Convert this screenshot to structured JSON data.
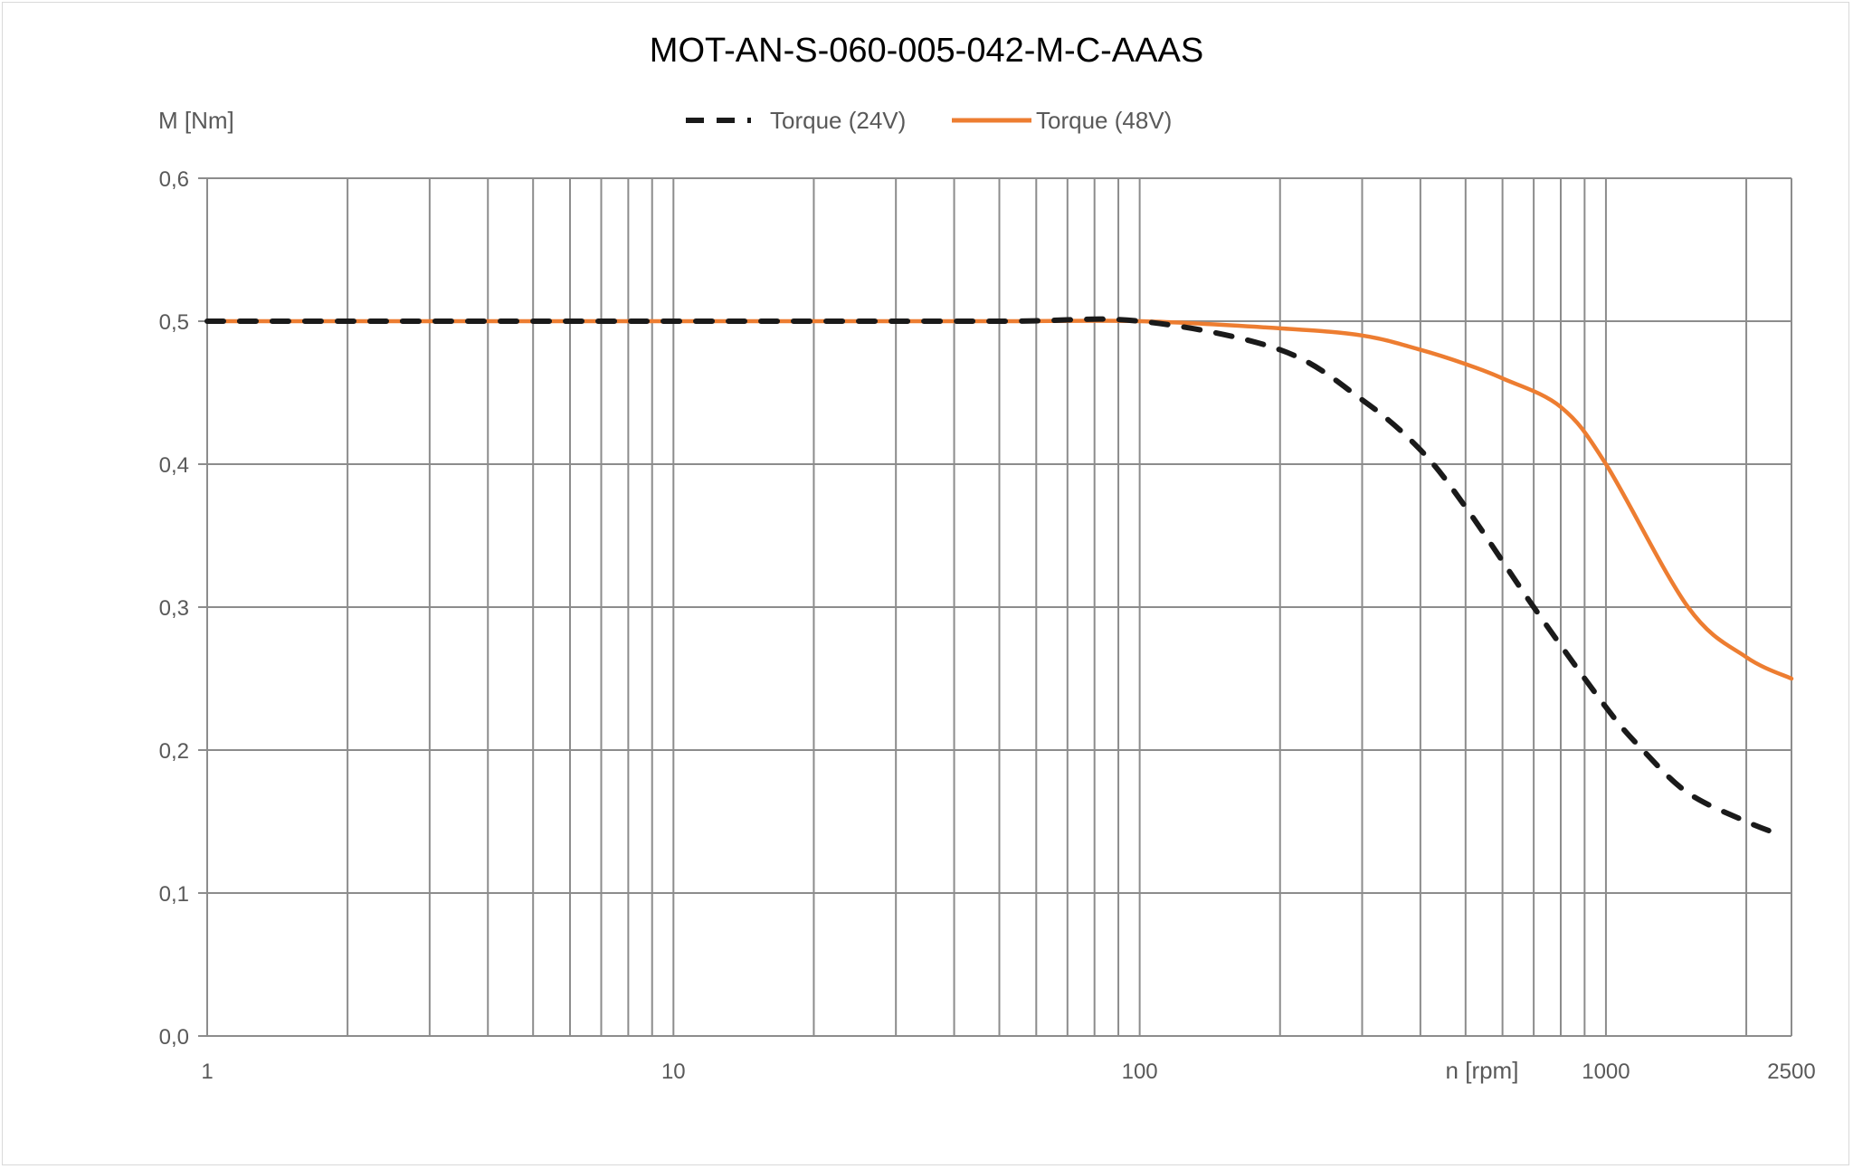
{
  "chart_data": {
    "type": "line",
    "title": "MOT-AN-S-060-005-042-M-C-AAAS",
    "xlabel": "n [rpm]",
    "ylabel": "M [Nm]",
    "x_scale": "log",
    "xlim": [
      1,
      2500
    ],
    "ylim": [
      0,
      0.6
    ],
    "x_tick_labels": [
      "1",
      "10",
      "100",
      "1000",
      "2500"
    ],
    "x_tick_values": [
      1,
      10,
      100,
      1000,
      2500
    ],
    "y_tick_labels": [
      "0,0",
      "0,1",
      "0,2",
      "0,3",
      "0,4",
      "0,5",
      "0,6"
    ],
    "y_tick_values": [
      0,
      0.1,
      0.2,
      0.3,
      0.4,
      0.5,
      0.6
    ],
    "grid": true,
    "legend_position": "top",
    "series": [
      {
        "name": "Torque (24V)",
        "color": "#1a1a1a",
        "style": "dashed",
        "x": [
          1,
          10,
          50,
          100,
          200,
          300,
          400,
          500,
          700,
          1000,
          1200,
          1500,
          2000,
          2400
        ],
        "y": [
          0.5,
          0.5,
          0.5,
          0.5,
          0.48,
          0.445,
          0.41,
          0.37,
          0.3,
          0.23,
          0.2,
          0.17,
          0.15,
          0.14
        ]
      },
      {
        "name": "Torque (48V)",
        "color": "#ed7d31",
        "style": "solid",
        "x": [
          1,
          10,
          50,
          100,
          200,
          300,
          400,
          500,
          600,
          800,
          1000,
          1500,
          2000,
          2500
        ],
        "y": [
          0.5,
          0.5,
          0.5,
          0.5,
          0.495,
          0.49,
          0.48,
          0.47,
          0.46,
          0.44,
          0.4,
          0.3,
          0.265,
          0.25
        ]
      }
    ]
  }
}
